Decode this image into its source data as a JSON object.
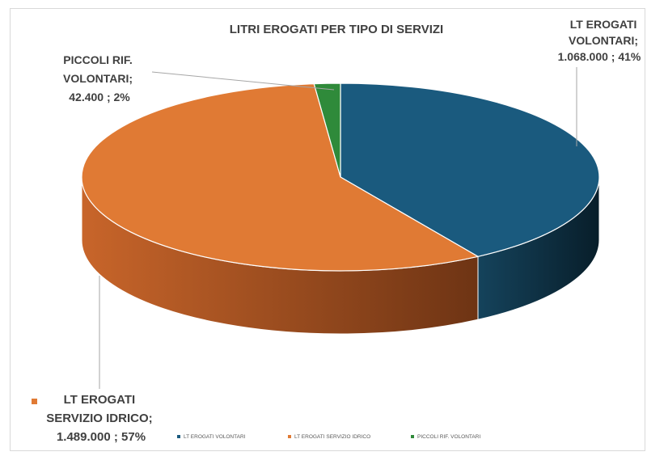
{
  "chart_data": {
    "type": "pie",
    "title": "LITRI EROGATI PER TIPO DI SERVIZI",
    "slices": [
      {
        "legend": "LT EROGATI VOLONTARI",
        "label_lines": [
          "LT EROGATI",
          "VOLONTARI;",
          "1.068.000 ; 41%"
        ],
        "value": 1068000,
        "percent": 41,
        "color": "#1a5a7e",
        "side_color": "#0e3447"
      },
      {
        "legend": "LT EROGATI SERVIZIO IDRICO",
        "label_lines": [
          "LT EROGATI",
          "SERVIZIO IDRICO;",
          "1.489.000 ; 57%"
        ],
        "value": 1489000,
        "percent": 57,
        "color": "#e07a34",
        "side_color": "#9a4a1e"
      },
      {
        "legend": "PICCOLI RIF. VOLONTARI",
        "label_lines": [
          "PICCOLI RIF.",
          "VOLONTARI;",
          "42.400 ; 2%"
        ],
        "value": 42400,
        "percent": 2,
        "color": "#2f8a3a",
        "side_color": "#1b5222"
      }
    ],
    "legend_position": "bottom",
    "style": "3d"
  }
}
